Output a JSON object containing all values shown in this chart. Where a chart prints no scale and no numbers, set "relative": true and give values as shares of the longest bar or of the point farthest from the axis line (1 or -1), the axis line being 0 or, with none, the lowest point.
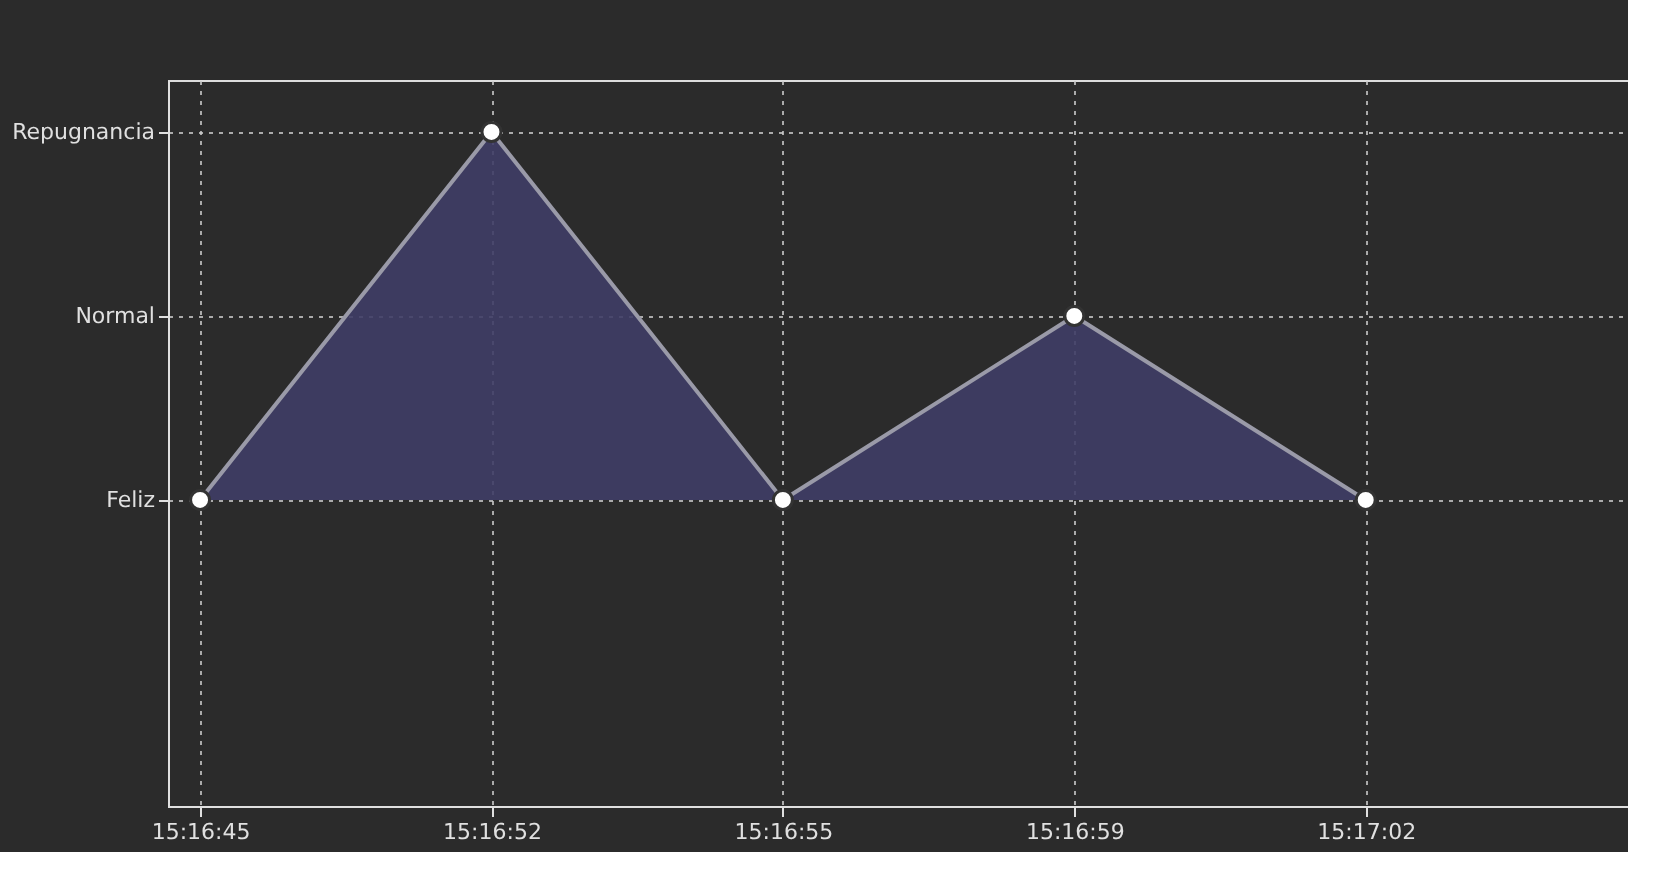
{
  "chart_data": {
    "type": "area",
    "relative": true,
    "categories": [
      "15:16:45",
      "15:16:52",
      "15:16:55",
      "15:16:59",
      "15:17:02"
    ],
    "y_categories": [
      "Repugnancia",
      "Normal",
      "Feliz"
    ],
    "series": [
      {
        "color": "#3f3d66",
        "values": [
          0.454,
          1,
          0.454,
          0.727,
          0.454
        ]
      }
    ],
    "grid": true,
    "marker": "circle"
  }
}
